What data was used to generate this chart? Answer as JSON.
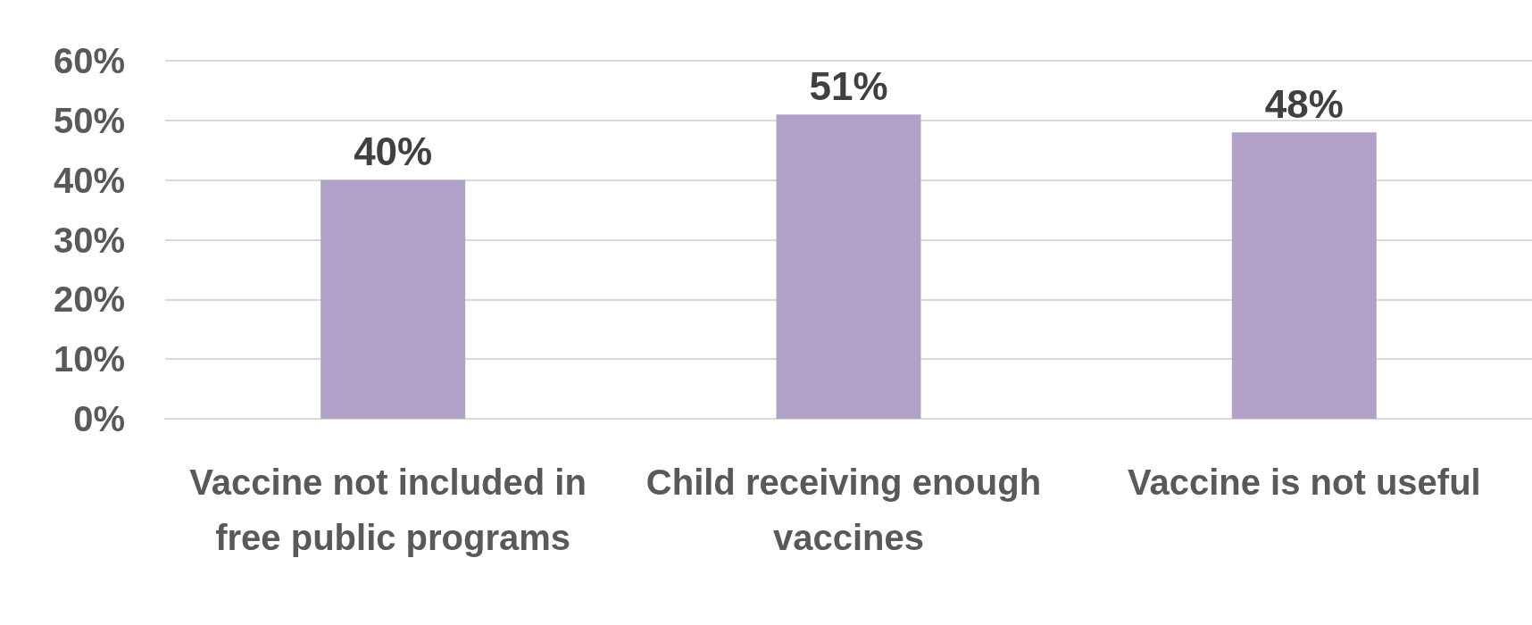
{
  "chart_data": {
    "type": "bar",
    "categories": [
      "Vaccine not included in free public programs",
      "Child receiving enough vaccines",
      "Vaccine is not useful"
    ],
    "values": [
      40,
      51,
      48
    ],
    "color": "#b1a1c7",
    "value_labels": [
      "40%",
      "51%",
      "48%"
    ],
    "ylim": [
      0,
      60
    ],
    "yticks": [
      {
        "value": 0,
        "label": "0%"
      },
      {
        "value": 10,
        "label": "10%"
      },
      {
        "value": 20,
        "label": "20%"
      },
      {
        "value": 30,
        "label": "30%"
      },
      {
        "value": 40,
        "label": "40%"
      },
      {
        "value": 50,
        "label": "50%"
      },
      {
        "value": 60,
        "label": "60%"
      }
    ],
    "grid": true
  }
}
